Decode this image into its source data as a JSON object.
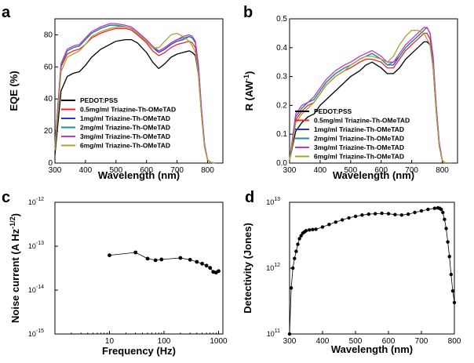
{
  "panel_labels": [
    "a",
    "b",
    "c",
    "d"
  ],
  "chart_data": [
    {
      "id": "a",
      "type": "line",
      "title": "",
      "xlabel": "Wavelength (nm)",
      "ylabel": "EQE (%)",
      "xlim": [
        300,
        850
      ],
      "ylim": [
        0,
        90
      ],
      "xticks": [
        300,
        400,
        500,
        600,
        700,
        800
      ],
      "yticks": [
        0,
        20,
        40,
        60,
        80
      ],
      "legend_position": "bottom-left",
      "x": [
        300,
        310,
        320,
        340,
        360,
        380,
        400,
        420,
        450,
        480,
        500,
        530,
        550,
        570,
        600,
        620,
        640,
        660,
        680,
        700,
        720,
        740,
        750,
        760,
        770,
        780,
        790,
        800,
        810,
        820,
        830
      ],
      "series": [
        {
          "name": "PEDOT:PSS",
          "color": "#000000",
          "values": [
            5,
            25,
            45,
            54,
            56,
            57,
            61,
            66,
            71,
            74,
            76,
            77,
            77,
            75,
            69,
            63,
            59,
            62,
            66,
            68,
            69,
            70,
            69,
            67,
            55,
            30,
            10,
            2,
            0.5,
            0.1,
            0
          ]
        },
        {
          "name": "0.5mg/ml Triazine-Th-OMeTAD",
          "color": "#e8252b",
          "values": [
            10,
            35,
            60,
            68,
            70,
            71,
            74,
            78,
            81,
            83,
            84,
            84,
            83,
            80,
            75,
            70,
            67,
            69,
            72,
            74,
            75,
            76,
            75,
            72,
            58,
            32,
            11,
            2,
            0.5,
            0.1,
            0
          ]
        },
        {
          "name": "1mg/ml Triazine-Th-OMeTAD",
          "color": "#2a38c9",
          "values": [
            10,
            36,
            61,
            70,
            72,
            73,
            77,
            81,
            84,
            86,
            86,
            85,
            84,
            81,
            76,
            72,
            69,
            71,
            74,
            76,
            77,
            79,
            78,
            75,
            60,
            33,
            11,
            2,
            0.5,
            0.1,
            0
          ]
        },
        {
          "name": "2mg/ml Triazine-Th-OMeTAD",
          "color": "#1f8f8f",
          "values": [
            10,
            36,
            61,
            70,
            72,
            73,
            77,
            81,
            84,
            86,
            86,
            85,
            84,
            81,
            76,
            72,
            70,
            72,
            75,
            77,
            78,
            79,
            78,
            75,
            60,
            33,
            11,
            2,
            0.5,
            0.1,
            0
          ]
        },
        {
          "name": "3mg/ml Triazine-Th-OMeTAD",
          "color": "#c037c0",
          "values": [
            10,
            37,
            62,
            71,
            73,
            74,
            78,
            82,
            85,
            87,
            87,
            86,
            85,
            82,
            77,
            73,
            70,
            72,
            75,
            77,
            79,
            80,
            79,
            76,
            61,
            34,
            12,
            2,
            0.5,
            0.1,
            0
          ]
        },
        {
          "name": "6mg/ml Triazine-Th-OMeTAD",
          "color": "#a9a13a",
          "values": [
            8,
            32,
            57,
            66,
            68,
            70,
            74,
            79,
            82,
            84,
            85,
            85,
            84,
            81,
            76,
            72,
            72,
            76,
            80,
            81,
            79,
            76,
            73,
            69,
            55,
            30,
            10,
            2,
            0.5,
            0.1,
            0
          ]
        }
      ]
    },
    {
      "id": "b",
      "type": "line",
      "title": "",
      "xlabel": "Wavelength (nm)",
      "ylabel": "R (AW-1)",
      "xlim": [
        300,
        850
      ],
      "ylim": [
        0,
        0.5
      ],
      "xticks": [
        300,
        400,
        500,
        600,
        700,
        800
      ],
      "yticks": [
        0.0,
        0.1,
        0.2,
        0.3,
        0.4,
        0.5
      ],
      "legend_position": "bottom-right",
      "x": [
        300,
        310,
        320,
        340,
        360,
        380,
        400,
        420,
        450,
        480,
        500,
        530,
        550,
        570,
        600,
        620,
        640,
        660,
        680,
        700,
        720,
        740,
        750,
        760,
        770,
        780,
        790,
        800,
        810,
        820,
        830
      ],
      "series": [
        {
          "name": "PEDOT:PSS",
          "color": "#000000",
          "values": [
            0.01,
            0.06,
            0.11,
            0.14,
            0.16,
            0.17,
            0.2,
            0.22,
            0.25,
            0.28,
            0.3,
            0.32,
            0.34,
            0.35,
            0.33,
            0.31,
            0.31,
            0.33,
            0.36,
            0.38,
            0.4,
            0.42,
            0.42,
            0.41,
            0.33,
            0.18,
            0.06,
            0.01,
            0,
            0,
            0
          ]
        },
        {
          "name": "0.5mg/ml Triazine-Th-OMeTAD",
          "color": "#e8252b",
          "values": [
            0.01,
            0.08,
            0.15,
            0.18,
            0.2,
            0.21,
            0.24,
            0.27,
            0.3,
            0.32,
            0.33,
            0.35,
            0.36,
            0.36,
            0.35,
            0.33,
            0.33,
            0.36,
            0.39,
            0.41,
            0.43,
            0.45,
            0.45,
            0.43,
            0.35,
            0.19,
            0.06,
            0.01,
            0,
            0,
            0
          ]
        },
        {
          "name": "1mg/ml Triazine-Th-OMeTAD",
          "color": "#2a38c9",
          "values": [
            0.01,
            0.08,
            0.16,
            0.19,
            0.21,
            0.22,
            0.25,
            0.28,
            0.31,
            0.33,
            0.34,
            0.36,
            0.37,
            0.38,
            0.36,
            0.34,
            0.34,
            0.37,
            0.4,
            0.42,
            0.44,
            0.46,
            0.47,
            0.45,
            0.36,
            0.2,
            0.07,
            0.01,
            0,
            0,
            0
          ]
        },
        {
          "name": "2mg/ml Triazine-Th-OMeTAD",
          "color": "#1f8f8f",
          "values": [
            0.01,
            0.08,
            0.16,
            0.19,
            0.21,
            0.22,
            0.25,
            0.28,
            0.31,
            0.33,
            0.34,
            0.36,
            0.37,
            0.38,
            0.36,
            0.34,
            0.35,
            0.37,
            0.4,
            0.42,
            0.44,
            0.46,
            0.47,
            0.45,
            0.36,
            0.2,
            0.07,
            0.01,
            0,
            0,
            0
          ]
        },
        {
          "name": "3mg/ml Triazine-Th-OMeTAD",
          "color": "#c037c0",
          "values": [
            0.01,
            0.09,
            0.17,
            0.2,
            0.21,
            0.23,
            0.26,
            0.29,
            0.32,
            0.34,
            0.35,
            0.37,
            0.38,
            0.39,
            0.37,
            0.35,
            0.35,
            0.38,
            0.41,
            0.43,
            0.45,
            0.47,
            0.47,
            0.45,
            0.37,
            0.2,
            0.07,
            0.01,
            0,
            0,
            0
          ]
        },
        {
          "name": "6mg/ml Triazine-Th-OMeTAD",
          "color": "#a9a13a",
          "values": [
            0.01,
            0.07,
            0.14,
            0.17,
            0.19,
            0.21,
            0.24,
            0.27,
            0.3,
            0.32,
            0.34,
            0.36,
            0.37,
            0.37,
            0.36,
            0.35,
            0.37,
            0.41,
            0.44,
            0.46,
            0.46,
            0.45,
            0.43,
            0.41,
            0.33,
            0.18,
            0.06,
            0.01,
            0,
            0,
            0
          ]
        }
      ]
    },
    {
      "id": "c",
      "type": "line",
      "scale": "log-log",
      "title": "",
      "xlabel": "Frequency (Hz)",
      "ylabel": "Noise current (A Hz",
      "ylabel_exp": "-1/2",
      "ylabel_tail": ")",
      "xlim": [
        1,
        1200
      ],
      "ylim": [
        1e-15,
        1e-12
      ],
      "xticks": [
        {
          "value": 10,
          "label": "10"
        },
        {
          "value": 100,
          "label": "100"
        },
        {
          "value": 1000,
          "label": "1000"
        }
      ],
      "yticks": [
        {
          "value": 1e-15,
          "base": "10",
          "exp": "-15"
        },
        {
          "value": 1e-14,
          "base": "10",
          "exp": "-14"
        },
        {
          "value": 1e-13,
          "base": "10",
          "exp": "-13"
        },
        {
          "value": 1e-12,
          "base": "10",
          "exp": "-12"
        }
      ],
      "x": [
        10,
        30,
        50,
        70,
        90,
        200,
        300,
        400,
        500,
        600,
        700,
        800,
        900,
        1000
      ],
      "series": [
        {
          "name": "Noise current",
          "color": "#000000",
          "values": [
            6.2e-14,
            7.2e-14,
            5.2e-14,
            4.8e-14,
            5e-14,
            5.4e-14,
            4.9e-14,
            4.4e-14,
            4e-14,
            3.6e-14,
            3.2e-14,
            2.6e-14,
            2.5e-14,
            2.7e-14
          ]
        }
      ]
    },
    {
      "id": "d",
      "type": "line",
      "scale": "log-y",
      "title": "",
      "xlabel": "Wavelength (nm)",
      "ylabel": "Detectivity (Jones)",
      "xlim": [
        300,
        800
      ],
      "ylim": [
        100000000000.0,
        10000000000000.0
      ],
      "xticks": [
        300,
        400,
        500,
        600,
        700,
        800
      ],
      "yticks": [
        {
          "value": 100000000000.0,
          "base": "10",
          "exp": "11"
        },
        {
          "value": 1000000000000.0,
          "base": "10",
          "exp": "12"
        },
        {
          "value": 10000000000000.0,
          "base": "10",
          "exp": "13"
        }
      ],
      "x": [
        300,
        305,
        310,
        315,
        320,
        325,
        330,
        335,
        340,
        345,
        350,
        360,
        370,
        380,
        400,
        420,
        440,
        460,
        480,
        500,
        520,
        540,
        560,
        580,
        600,
        620,
        640,
        660,
        680,
        700,
        720,
        740,
        750,
        755,
        760,
        765,
        770,
        775,
        780,
        785,
        790,
        795,
        800
      ],
      "series": [
        {
          "name": "Detectivity",
          "color": "#000000",
          "values": [
            100000000000.0,
            500000000000.0,
            1000000000000.0,
            1400000000000.0,
            1800000000000.0,
            2300000000000.0,
            2800000000000.0,
            3100000000000.0,
            3400000000000.0,
            3550000000000.0,
            3700000000000.0,
            3800000000000.0,
            3850000000000.0,
            3900000000000.0,
            4200000000000.0,
            4600000000000.0,
            5000000000000.0,
            5400000000000.0,
            5800000000000.0,
            6100000000000.0,
            6400000000000.0,
            6600000000000.0,
            6700000000000.0,
            6800000000000.0,
            6700000000000.0,
            6500000000000.0,
            6400000000000.0,
            6600000000000.0,
            7000000000000.0,
            7400000000000.0,
            7800000000000.0,
            8100000000000.0,
            8200000000000.0,
            8100000000000.0,
            7800000000000.0,
            7000000000000.0,
            5500000000000.0,
            4000000000000.0,
            2500000000000.0,
            1500000000000.0,
            800000000000.0,
            450000000000.0,
            300000000000.0
          ]
        }
      ]
    }
  ]
}
